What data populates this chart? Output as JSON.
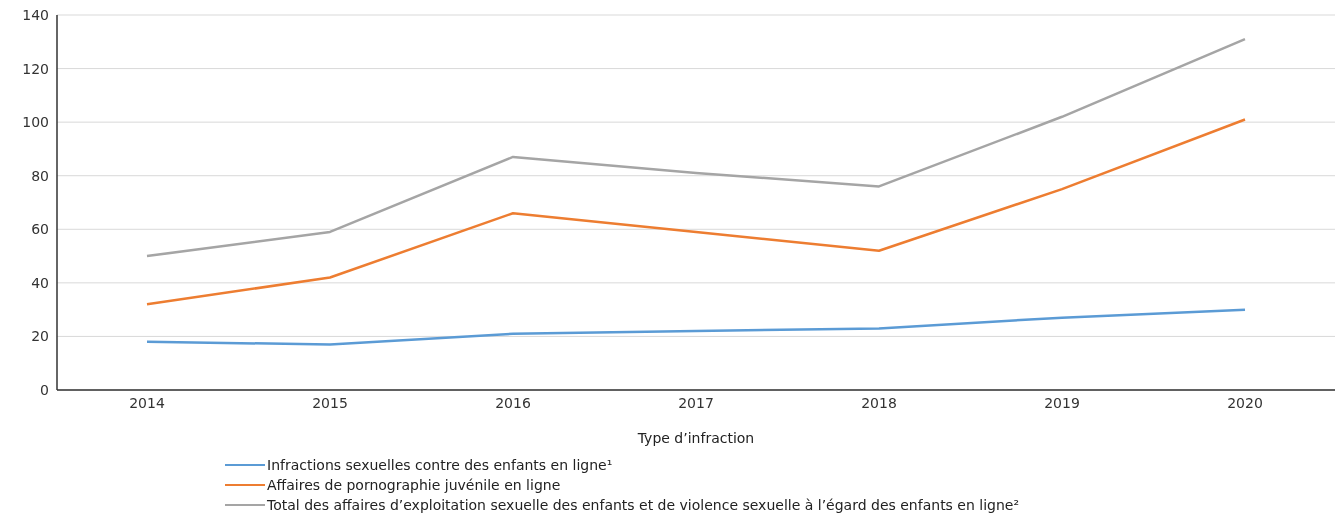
{
  "chart_data": {
    "type": "line",
    "xlabel": "Type d’infraction",
    "categories": [
      "2014",
      "2015",
      "2016",
      "2017",
      "2018",
      "2019",
      "2020"
    ],
    "series": [
      {
        "name": "Infractions sexuelles contre des enfants en ligne¹",
        "color": "#5b9bd5",
        "values": [
          18,
          17,
          21,
          22,
          23,
          27,
          30
        ]
      },
      {
        "name": "Affaires de pornographie juvénile en ligne",
        "color": "#ed7d31",
        "values": [
          32,
          42,
          66,
          59,
          52,
          75,
          101
        ]
      },
      {
        "name": "Total des affaires d’exploitation sexuelle des enfants et de violence sexuelle à l’égard des enfants en ligne²",
        "color": "#a5a5a5",
        "values": [
          50,
          59,
          87,
          81,
          76,
          102,
          131
        ]
      }
    ],
    "ylim": [
      0,
      140
    ],
    "yticks": [
      0,
      20,
      40,
      60,
      80,
      100,
      120,
      140
    ],
    "grid": "y",
    "legend": "bottom",
    "marker": "none",
    "line_style": "solid"
  }
}
